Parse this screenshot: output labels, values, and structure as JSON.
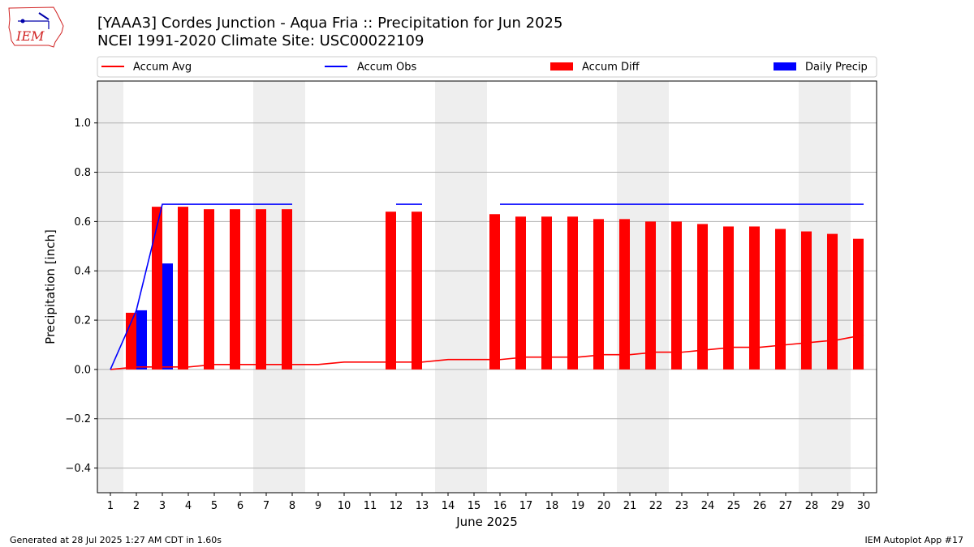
{
  "header": {
    "title_line1": "[YAAA3] Cordes Junction - Aqua Fria :: Precipitation for Jun 2025",
    "title_line2": "NCEI 1991-2020 Climate Site: USC00022109"
  },
  "logo": {
    "text": "IEM"
  },
  "footer": {
    "generated": "Generated at 28 Jul 2025 1:27 AM CDT in 1.60s",
    "app": "IEM Autoplot App #17"
  },
  "colors": {
    "avg": "#ff0000",
    "obs": "#0000ff",
    "diff": "#ff0000",
    "daily": "#0000ff",
    "weekend": "#eeeeee",
    "grid": "#b0b0b0"
  },
  "chart_data": {
    "type": "bar",
    "title": "[YAAA3] Cordes Junction - Aqua Fria :: Precipitation for Jun 2025",
    "subtitle": "NCEI 1991-2020 Climate Site: USC00022109",
    "xlabel": "June 2025",
    "ylabel": "Precipitation [inch]",
    "ylim": [
      -0.5,
      1.17
    ],
    "yticks": [
      -0.4,
      -0.2,
      0.0,
      0.2,
      0.4,
      0.6,
      0.8,
      1.0
    ],
    "ytick_labels": [
      "−0.4",
      "−0.2",
      "0.0",
      "0.2",
      "0.4",
      "0.6",
      "0.8",
      "1.0"
    ],
    "days": [
      1,
      2,
      3,
      4,
      5,
      6,
      7,
      8,
      9,
      10,
      11,
      12,
      13,
      14,
      15,
      16,
      17,
      18,
      19,
      20,
      21,
      22,
      23,
      24,
      25,
      26,
      27,
      28,
      29,
      30
    ],
    "shaded_days": [
      1,
      7,
      8,
      14,
      15,
      21,
      22,
      28,
      29
    ],
    "grid": true,
    "legend": [
      {
        "label": "Accum Avg",
        "kind": "line",
        "color": "#ff0000"
      },
      {
        "label": "Accum Obs",
        "kind": "line",
        "color": "#0000ff"
      },
      {
        "label": "Accum Diff",
        "kind": "bar",
        "color": "#ff0000"
      },
      {
        "label": "Daily Precip",
        "kind": "bar",
        "color": "#0000ff"
      }
    ],
    "series": [
      {
        "name": "Accum Avg",
        "type": "line",
        "values": [
          0.0,
          0.01,
          0.01,
          0.01,
          0.02,
          0.02,
          0.02,
          0.02,
          0.02,
          0.03,
          0.03,
          0.03,
          0.03,
          0.04,
          0.04,
          0.04,
          0.05,
          0.05,
          0.05,
          0.06,
          0.06,
          0.07,
          0.07,
          0.08,
          0.09,
          0.09,
          0.1,
          0.11,
          0.12,
          0.14
        ]
      },
      {
        "name": "Accum Obs",
        "type": "line",
        "values": [
          0.0,
          0.24,
          0.67,
          0.67,
          0.67,
          0.67,
          0.67,
          0.67,
          null,
          null,
          null,
          0.67,
          0.67,
          null,
          null,
          0.67,
          0.67,
          0.67,
          0.67,
          0.67,
          0.67,
          0.67,
          0.67,
          0.67,
          0.67,
          0.67,
          0.67,
          0.67,
          0.67,
          0.67
        ]
      },
      {
        "name": "Accum Diff",
        "type": "bar",
        "values": [
          null,
          0.23,
          0.66,
          0.66,
          0.65,
          0.65,
          0.65,
          0.65,
          null,
          null,
          null,
          0.64,
          0.64,
          null,
          null,
          0.63,
          0.62,
          0.62,
          0.62,
          0.61,
          0.61,
          0.6,
          0.6,
          0.59,
          0.58,
          0.58,
          0.57,
          0.56,
          0.55,
          0.53
        ]
      },
      {
        "name": "Daily Precip",
        "type": "bar",
        "values": [
          0,
          0.24,
          0.43,
          0,
          0,
          0,
          0,
          0,
          0,
          0,
          0,
          0,
          0,
          0,
          0,
          0,
          0,
          0,
          0,
          0,
          0,
          0,
          0,
          0,
          0,
          0,
          0,
          0,
          0,
          0
        ]
      }
    ]
  }
}
